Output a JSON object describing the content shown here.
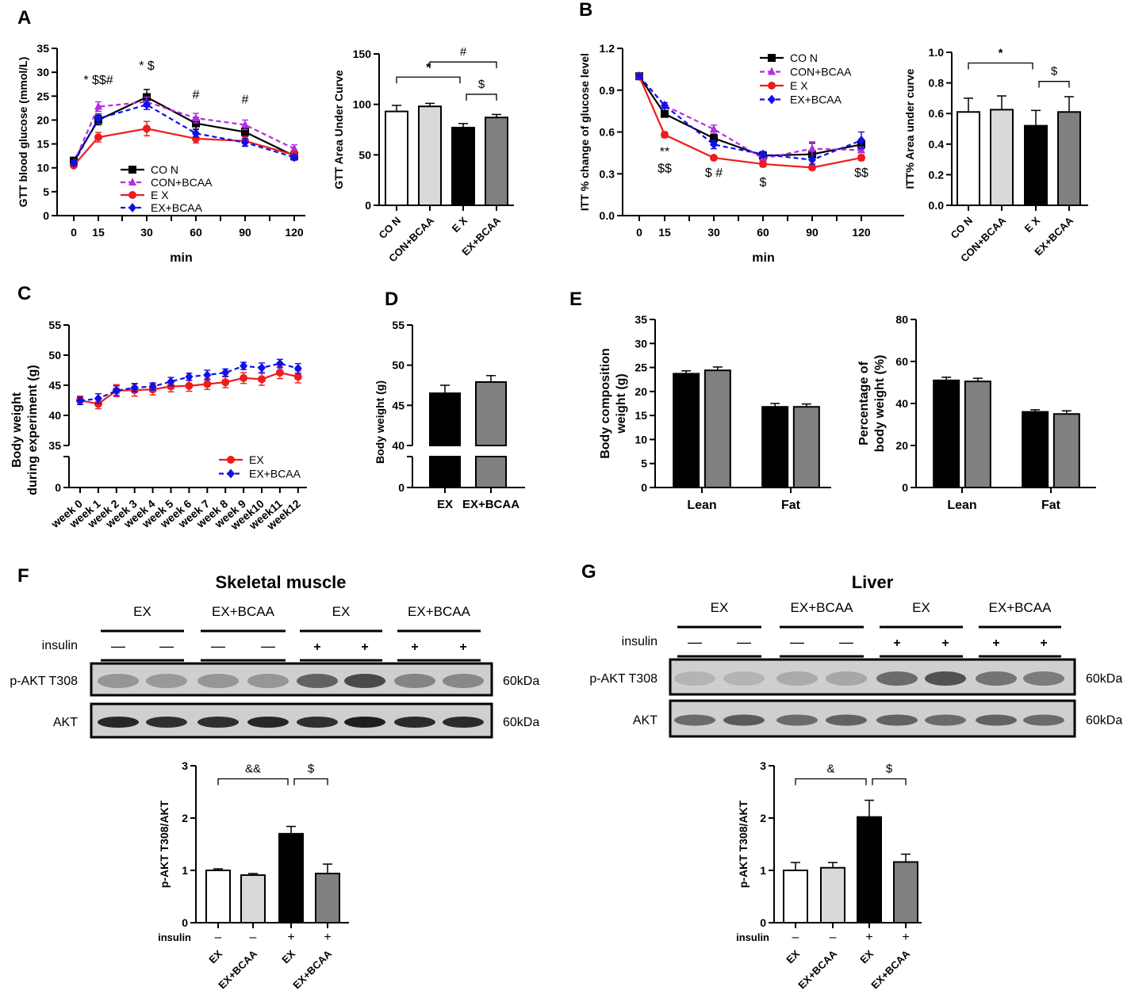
{
  "panel_letters": [
    "A",
    "B",
    "C",
    "D",
    "E",
    "F",
    "G"
  ],
  "colors": {
    "CON": "#000000",
    "CON+BCAA": "#b030e0",
    "EX": "#ee1c1c",
    "EX+BCAA": "#1010e8",
    "bar_CON": "#ffffff",
    "bar_CON+BCAA": "#d9d9d9",
    "bar_EX": "#000000",
    "bar_EX+BCAA": "#808080"
  },
  "chart_data": [
    {
      "id": "A_line",
      "type": "line",
      "ylabel": "GTT blood glucose (mmol/L)",
      "xlabel": "min",
      "x": [
        0,
        15,
        30,
        60,
        90,
        120
      ],
      "ylim": [
        0,
        35
      ],
      "yticks": [
        0,
        5,
        10,
        15,
        20,
        25,
        30,
        35
      ],
      "series": [
        {
          "name": "CO N",
          "key": "CON",
          "values": [
            11.5,
            20.0,
            24.8,
            19.3,
            17.5,
            12.5
          ],
          "err": [
            0.5,
            1.0,
            1.6,
            1.2,
            1.0,
            0.7
          ],
          "marker": "square",
          "dash": false
        },
        {
          "name": "CON+BCAA",
          "key": "CON+BCAA",
          "values": [
            11.0,
            22.8,
            23.8,
            20.4,
            19.0,
            14.0
          ],
          "err": [
            0.5,
            1.0,
            1.0,
            1.0,
            1.0,
            0.8
          ],
          "marker": "triangle",
          "dash": true
        },
        {
          "name": "E X",
          "key": "EX",
          "values": [
            10.5,
            16.4,
            18.2,
            16.1,
            15.6,
            12.7
          ],
          "err": [
            0.4,
            1.0,
            1.5,
            0.9,
            1.0,
            0.8
          ],
          "marker": "circle",
          "dash": false
        },
        {
          "name": "EX+BCAA",
          "key": "EX+BCAA",
          "values": [
            11.0,
            20.3,
            23.2,
            17.2,
            15.3,
            12.2
          ],
          "err": [
            0.5,
            1.0,
            1.0,
            0.8,
            0.8,
            0.6
          ],
          "marker": "diamond",
          "dash": true
        }
      ],
      "annotations": [
        {
          "x": 15,
          "y": 27.5,
          "text": "* $$#"
        },
        {
          "x": 30,
          "y": 30.5,
          "text": "* $"
        },
        {
          "x": 60,
          "y": 24.5,
          "text": "#"
        },
        {
          "x": 90,
          "y": 23.5,
          "text": "#"
        }
      ],
      "legend": "bottom-center"
    },
    {
      "id": "A_bar",
      "type": "bar",
      "ylabel": "GTT Area Under Curve",
      "categories": [
        "CO N",
        "CON+BCAA",
        "E X",
        "EX+BCAA"
      ],
      "keys": [
        "CON",
        "CON+BCAA",
        "EX",
        "EX+BCAA"
      ],
      "values": [
        93,
        98,
        77,
        87
      ],
      "err": [
        6,
        3,
        4,
        3
      ],
      "ylim": [
        0,
        150
      ],
      "yticks": [
        0,
        50,
        100,
        150
      ],
      "brackets": [
        {
          "from": 1,
          "to": 3,
          "y": 142,
          "text": "#"
        },
        {
          "from": 0,
          "to": 2,
          "y": 127,
          "text": "*"
        },
        {
          "from": 2,
          "to": 3,
          "y": 110,
          "text": "$"
        }
      ]
    },
    {
      "id": "B_line",
      "type": "line",
      "ylabel": "ITT % change of glucose level",
      "xlabel": "min",
      "x": [
        0,
        15,
        30,
        60,
        90,
        120
      ],
      "ylim": [
        0,
        1.2
      ],
      "yticks": [
        "0.0",
        "0.3",
        "0.6",
        "0.9",
        "1.2"
      ],
      "series": [
        {
          "name": "CO N",
          "key": "CON",
          "values": [
            1.0,
            0.73,
            0.555,
            0.43,
            0.44,
            0.51
          ],
          "err": [
            0.01,
            0.02,
            0.03,
            0.02,
            0.08,
            0.03
          ],
          "marker": "square",
          "dash": false
        },
        {
          "name": "CON+BCAA",
          "key": "CON+BCAA",
          "values": [
            1.0,
            0.79,
            0.62,
            0.41,
            0.48,
            0.47
          ],
          "err": [
            0.01,
            0.02,
            0.03,
            0.02,
            0.05,
            0.02
          ],
          "marker": "triangle",
          "dash": true
        },
        {
          "name": "E X",
          "key": "EX",
          "values": [
            1.0,
            0.58,
            0.415,
            0.37,
            0.345,
            0.415
          ],
          "err": [
            0.01,
            0.02,
            0.01,
            0.02,
            0.01,
            0.02
          ],
          "marker": "circle",
          "dash": false
        },
        {
          "name": "EX+BCAA",
          "key": "EX+BCAA",
          "values": [
            1.0,
            0.79,
            0.51,
            0.44,
            0.4,
            0.54
          ],
          "err": [
            0.01,
            0.02,
            0.03,
            0.02,
            0.03,
            0.06
          ],
          "marker": "diamond",
          "dash": true
        }
      ],
      "annotations": [
        {
          "x": 15,
          "y": 0.43,
          "text": "**"
        },
        {
          "x": 15,
          "y": 0.31,
          "text": "$$"
        },
        {
          "x": 30,
          "y": 0.28,
          "text": "$ #"
        },
        {
          "x": 60,
          "y": 0.21,
          "text": "$"
        },
        {
          "x": 120,
          "y": 0.28,
          "text": "$$"
        }
      ],
      "legend": "top-right"
    },
    {
      "id": "B_bar",
      "type": "bar",
      "ylabel": "ITT% Area under curve",
      "categories": [
        "CO N",
        "CON+BCAA",
        "E X",
        "EX+BCAA"
      ],
      "keys": [
        "CON",
        "CON+BCAA",
        "EX",
        "EX+BCAA"
      ],
      "values": [
        0.61,
        0.625,
        0.52,
        0.61
      ],
      "err": [
        0.09,
        0.09,
        0.1,
        0.1
      ],
      "ylim": [
        0,
        1.0
      ],
      "yticks": [
        "0.0",
        "0.2",
        "0.4",
        "0.6",
        "0.8",
        "1.0"
      ],
      "brackets": [
        {
          "from": 0,
          "to": 2,
          "y": 0.93,
          "text": "*"
        },
        {
          "from": 2,
          "to": 3,
          "y": 0.81,
          "text": "$"
        }
      ]
    },
    {
      "id": "C_line",
      "type": "line",
      "ylabel": [
        "Body weight",
        "during experiment (g)"
      ],
      "x": [
        "week 0",
        "week 1",
        "week 2",
        "week 3",
        "week 4",
        "week 5",
        "week 6",
        "week 7",
        "week 8",
        "week 9",
        "week10",
        "week11",
        "week12"
      ],
      "ylim": [
        35,
        55
      ],
      "yticks": [
        35,
        40,
        45,
        50,
        55
      ],
      "ybreak_low": 0,
      "series": [
        {
          "name": "EX",
          "key": "EX",
          "values": [
            42.5,
            41.9,
            44.1,
            44.2,
            44.3,
            44.8,
            44.9,
            45.2,
            45.5,
            46.2,
            46.0,
            47.1,
            46.4
          ],
          "err": [
            0.7,
            0.8,
            1.0,
            1.0,
            0.9,
            0.9,
            0.9,
            0.9,
            0.9,
            0.9,
            1.0,
            1.0,
            1.0
          ],
          "marker": "circle",
          "dash": false
        },
        {
          "name": "EX+BCAA",
          "key": "EX+BCAA",
          "values": [
            42.4,
            42.8,
            44.1,
            44.6,
            44.8,
            45.6,
            46.4,
            46.7,
            47.1,
            48.2,
            47.9,
            48.6,
            47.8
          ],
          "err": [
            0.6,
            0.8,
            0.8,
            0.7,
            0.6,
            0.7,
            0.6,
            0.8,
            0.6,
            0.6,
            0.8,
            0.7,
            0.8
          ],
          "marker": "diamond",
          "dash": true
        }
      ],
      "legend": "bottom-right"
    },
    {
      "id": "D_bar",
      "type": "bar",
      "ylabel": "Body weight (g)",
      "categories": [
        "EX",
        "EX+BCAA"
      ],
      "keys": [
        "EX",
        "EX+BCAA"
      ],
      "values": [
        46.5,
        47.9
      ],
      "err": [
        1.0,
        0.8
      ],
      "ylim": [
        40,
        55
      ],
      "yticks": [
        40,
        45,
        50,
        55
      ],
      "ybreak_low": 0
    },
    {
      "id": "E1_bar",
      "type": "grouped_bar",
      "ylabel": [
        "Body composition",
        "weight (g)"
      ],
      "groups": [
        "Lean",
        "Fat"
      ],
      "keys": [
        "EX",
        "EX+BCAA"
      ],
      "values": [
        [
          23.7,
          24.4
        ],
        [
          16.8,
          16.8
        ]
      ],
      "err": [
        [
          0.6,
          0.7
        ],
        [
          0.7,
          0.6
        ]
      ],
      "ylim": [
        0,
        35
      ],
      "yticks": [
        0,
        5,
        10,
        15,
        20,
        25,
        30,
        35
      ]
    },
    {
      "id": "E2_bar",
      "type": "grouped_bar",
      "ylabel": [
        "Percentage of",
        "body weight (%)"
      ],
      "groups": [
        "Lean",
        "Fat"
      ],
      "keys": [
        "EX",
        "EX+BCAA"
      ],
      "values": [
        [
          51,
          50.5
        ],
        [
          36,
          35
        ]
      ],
      "err": [
        [
          1.5,
          1.5
        ],
        [
          1,
          1.5
        ]
      ],
      "ylim": [
        0,
        80
      ],
      "yticks": [
        0,
        20,
        40,
        60,
        80
      ]
    },
    {
      "id": "F_bar",
      "type": "bar",
      "ylabel": "p-AKT T308/AKT",
      "categories": [
        "EX",
        "EX+BCAA",
        "EX",
        "EX+BCAA"
      ],
      "insulin": [
        "–",
        "–",
        "+",
        "+"
      ],
      "keys": [
        "CON",
        "CON+BCAA",
        "EX",
        "EX+BCAA"
      ],
      "values": [
        1.0,
        0.91,
        1.7,
        0.94
      ],
      "err": [
        0.03,
        0.03,
        0.14,
        0.18
      ],
      "ylim": [
        0,
        3
      ],
      "yticks": [
        0,
        1,
        2,
        3
      ],
      "brackets": [
        {
          "from": 0,
          "to": 2,
          "y": 2.75,
          "text": "&&"
        },
        {
          "from": 2,
          "to": 3,
          "y": 2.75,
          "text": "$"
        }
      ]
    },
    {
      "id": "G_bar",
      "type": "bar",
      "ylabel": "p-AKT T308/AKT",
      "categories": [
        "EX",
        "EX+BCAA",
        "EX",
        "EX+BCAA"
      ],
      "insulin": [
        "–",
        "–",
        "+",
        "+"
      ],
      "keys": [
        "CON",
        "CON+BCAA",
        "EX",
        "EX+BCAA"
      ],
      "values": [
        1.0,
        1.05,
        2.02,
        1.16
      ],
      "err": [
        0.15,
        0.1,
        0.32,
        0.15
      ],
      "ylim": [
        0,
        3
      ],
      "yticks": [
        0,
        1,
        2,
        3
      ],
      "brackets": [
        {
          "from": 0,
          "to": 2,
          "y": 2.75,
          "text": "&"
        },
        {
          "from": 2,
          "to": 3,
          "y": 2.75,
          "text": "$"
        }
      ]
    }
  ],
  "insulin_label": "insulin",
  "blots": [
    {
      "id": "F",
      "title": "Skeletal muscle",
      "groups": [
        "EX",
        "EX+BCAA",
        "EX",
        "EX+BCAA"
      ],
      "insulin": [
        "—",
        "—",
        "—",
        "—",
        "+",
        "+",
        "+",
        "+"
      ],
      "rows": [
        {
          "label": "p-AKT T308",
          "size": "60kDa",
          "band_intensity": [
            0.3,
            0.28,
            0.3,
            0.3,
            0.6,
            0.75,
            0.4,
            0.38
          ]
        },
        {
          "label": "AKT",
          "size": "60kDa",
          "band_intensity": [
            0.95,
            0.9,
            0.9,
            0.95,
            0.9,
            1.0,
            0.92,
            0.92
          ]
        }
      ]
    },
    {
      "id": "G",
      "title": "Liver",
      "groups": [
        "EX",
        "EX+BCAA",
        "EX",
        "EX+BCAA"
      ],
      "insulin": [
        "—",
        "—",
        "—",
        "—",
        "+",
        "+",
        "+",
        "+"
      ],
      "rows": [
        {
          "label": "p-AKT T308",
          "size": "60kDa",
          "band_intensity": [
            0.12,
            0.12,
            0.18,
            0.2,
            0.55,
            0.7,
            0.5,
            0.45
          ]
        },
        {
          "label": "AKT",
          "size": "60kDa",
          "band_intensity": [
            0.55,
            0.65,
            0.55,
            0.6,
            0.6,
            0.55,
            0.6,
            0.55
          ]
        }
      ]
    }
  ]
}
